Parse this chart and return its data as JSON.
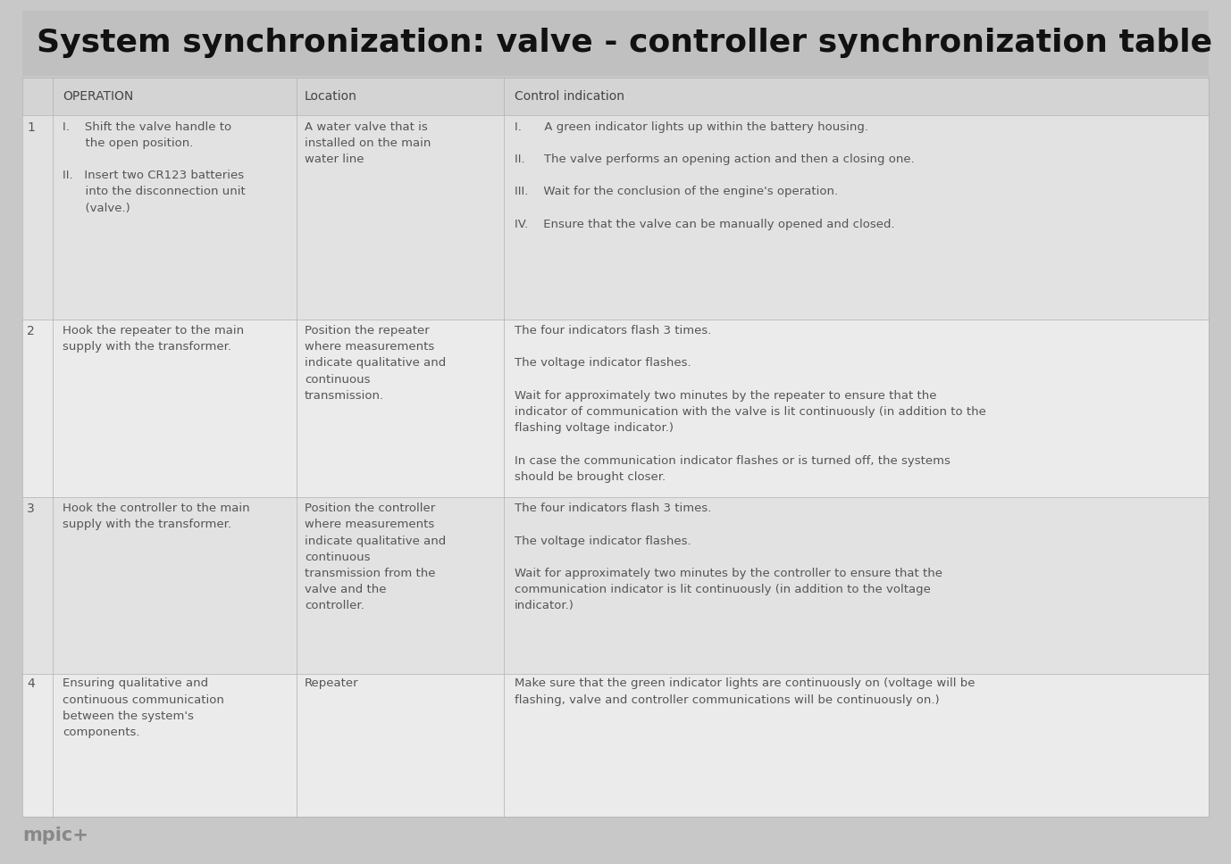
{
  "title": "System synchronization: valve - controller synchronization table",
  "title_bg": "#c0c0c0",
  "title_color": "#111111",
  "title_fontsize": 26,
  "header_bg": "#d4d4d4",
  "row_bg_1": "#e2e2e2",
  "row_bg_2": "#ebebeb",
  "border_color": "#b0b0b0",
  "text_color": "#555555",
  "header_text_color": "#444444",
  "fig_bg": "#c8c8c8",
  "headers": [
    "OPERATION",
    "Location",
    "Control indication"
  ],
  "footer_text": "mpic+",
  "font_family": "DejaVu Sans",
  "rows": [
    {
      "num": "1",
      "op_lines": [
        "I.    Shift the valve handle to",
        "      the open position.",
        "",
        "II.   Insert two CR123 batteries",
        "      into the disconnection unit",
        "      (valve.)"
      ],
      "loc_lines": [
        "A water valve that is",
        "installed on the main",
        "water line"
      ],
      "ctrl_lines": [
        "I.      A green indicator lights up within the battery housing.",
        "",
        "II.     The valve performs an opening action and then a closing one.",
        "",
        "III.    Wait for the conclusion of the engine's operation.",
        "",
        "IV.    Ensure that the valve can be manually opened and closed."
      ]
    },
    {
      "num": "2",
      "op_lines": [
        "Hook the repeater to the main",
        "supply with the transformer."
      ],
      "loc_lines": [
        "Position the repeater",
        "where measurements",
        "indicate qualitative and",
        "continuous",
        "transmission."
      ],
      "ctrl_lines": [
        "The four indicators flash 3 times.",
        "",
        "The voltage indicator flashes.",
        "",
        "Wait for approximately two minutes by the repeater to ensure that the",
        "indicator of communication with the valve is lit continuously (in addition to the",
        "flashing voltage indicator.)",
        "",
        "In case the communication indicator flashes or is turned off, the systems",
        "should be brought closer."
      ]
    },
    {
      "num": "3",
      "op_lines": [
        "Hook the controller to the main",
        "supply with the transformer."
      ],
      "loc_lines": [
        "Position the controller",
        "where measurements",
        "indicate qualitative and",
        "continuous",
        "transmission from the",
        "valve and the",
        "controller."
      ],
      "ctrl_lines": [
        "The four indicators flash 3 times.",
        "",
        "The voltage indicator flashes.",
        "",
        "Wait for approximately two minutes by the controller to ensure that the",
        "communication indicator is lit continuously (in addition to the voltage",
        "indicator.)"
      ]
    },
    {
      "num": "4",
      "op_lines": [
        "Ensuring qualitative and",
        "continuous communication",
        "between the system's",
        "components."
      ],
      "loc_lines": [
        "Repeater"
      ],
      "ctrl_lines": [
        "Make sure that the green indicator lights are continuously on (voltage will be",
        "flashing, valve and controller communications will be continuously on.)"
      ]
    }
  ]
}
